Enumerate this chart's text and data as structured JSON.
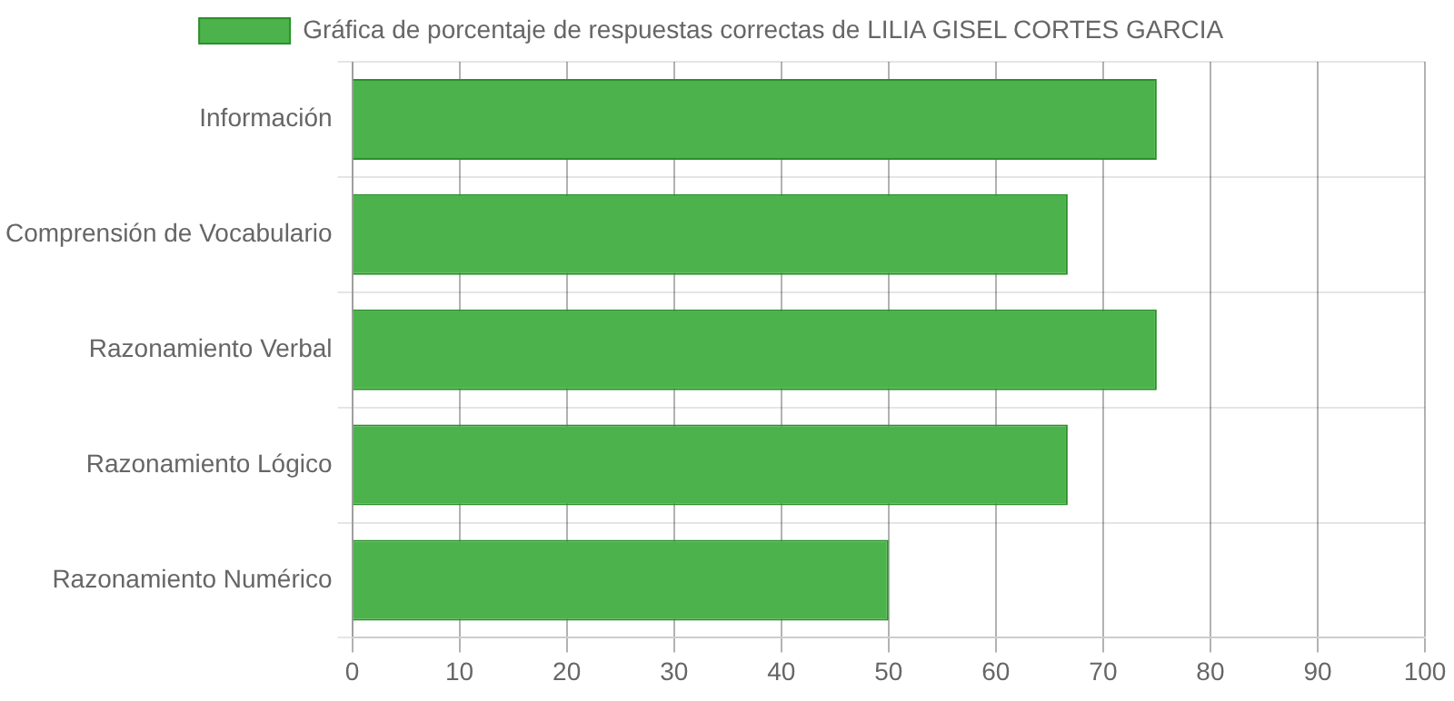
{
  "chart_data": {
    "type": "bar",
    "orientation": "horizontal",
    "categories": [
      "Información",
      "Comprensión de Vocabulario",
      "Razonamiento Verbal",
      "Razonamiento Lógico",
      "Razonamiento Numérico"
    ],
    "series": [
      {
        "name": "Gráfica de porcentaje de respuestas correctas de LILIA GISEL CORTES GARCIA",
        "color": "#4cb34c",
        "values": [
          75,
          66.7,
          75,
          66.7,
          50
        ]
      }
    ],
    "xlim": [
      0,
      100
    ],
    "xticks": [
      0,
      10,
      20,
      30,
      40,
      50,
      60,
      70,
      80,
      90,
      100
    ],
    "grid": true,
    "legend": "top"
  }
}
